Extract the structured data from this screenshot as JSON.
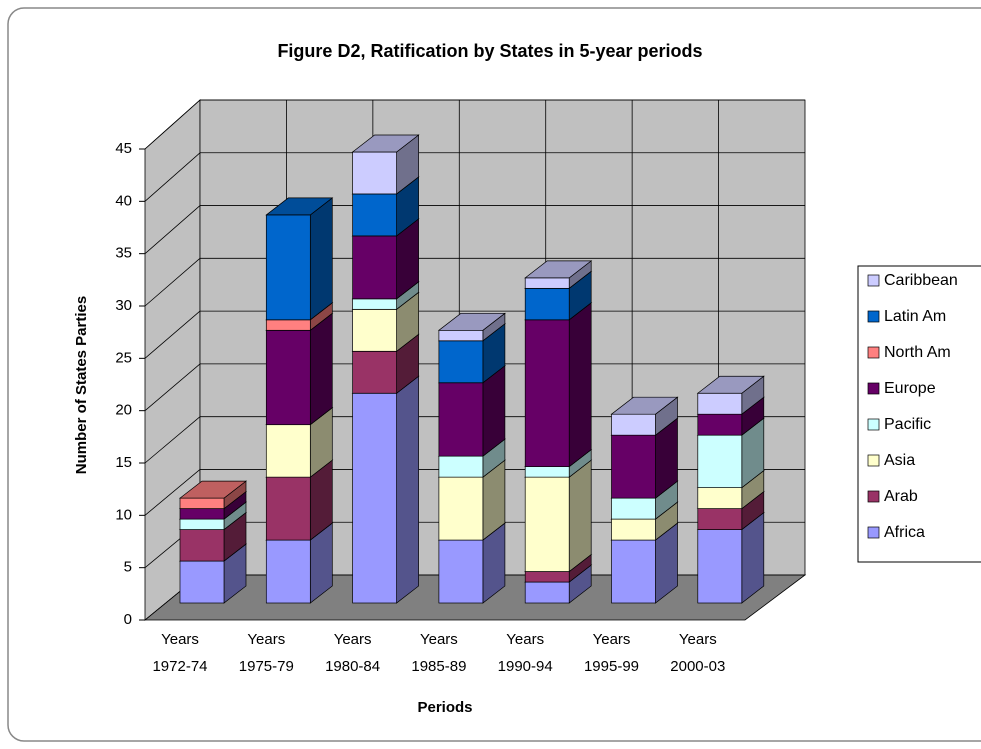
{
  "chart_data": {
    "type": "bar3d_stacked",
    "title": "Figure D2, Ratification by States in 5-year periods",
    "y_label": "Number of States Parties",
    "x_label": "Periods",
    "categories": [
      "Years 1972-74",
      "Years 1975-79",
      "Years 1980-84",
      "Years 1985-89",
      "Years 1990-94",
      "Years 1995-99",
      "Years 2000-03"
    ],
    "series": [
      {
        "name": "Africa",
        "color": "#9999ff",
        "values": [
          4,
          6,
          20,
          6,
          2,
          6,
          7
        ]
      },
      {
        "name": "Arab",
        "color": "#993366",
        "values": [
          3,
          6,
          4,
          0,
          1,
          0,
          2
        ]
      },
      {
        "name": "Asia",
        "color": "#ffffcc",
        "values": [
          0,
          5,
          4,
          6,
          9,
          2,
          2
        ]
      },
      {
        "name": "Pacific",
        "color": "#ccffff",
        "values": [
          1,
          0,
          1,
          2,
          1,
          2,
          5
        ]
      },
      {
        "name": "Europe",
        "color": "#660066",
        "values": [
          1,
          9,
          6,
          7,
          14,
          6,
          2
        ]
      },
      {
        "name": "North Am",
        "color": "#ff8080",
        "values": [
          1,
          1,
          0,
          0,
          0,
          0,
          0
        ]
      },
      {
        "name": "Latin Am",
        "color": "#0066cc",
        "values": [
          0,
          10,
          4,
          4,
          3,
          0,
          0
        ]
      },
      {
        "name": "Caribbean",
        "color": "#ccccff",
        "values": [
          0,
          0,
          4,
          1,
          1,
          2,
          2
        ]
      }
    ],
    "ylim": [
      0,
      45
    ],
    "yticks": [
      0,
      5,
      10,
      15,
      20,
      25,
      30,
      35,
      40,
      45
    ],
    "grid": true,
    "legend": "right"
  }
}
